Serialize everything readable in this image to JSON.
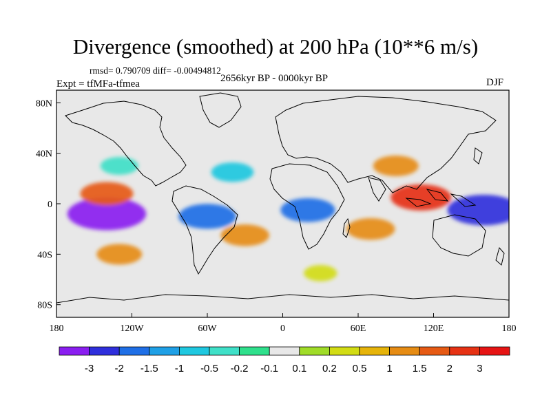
{
  "figure": {
    "title": "Divergence (smoothed) at 200 hPa (10**6 m/s)",
    "stats": "rmsd= 0.790709 diff= -0.00494812",
    "period": "2656kyr BP - 0000kyr BP",
    "experiment": "Expt = tfMFa-tfmea",
    "season": "DJF"
  },
  "axes": {
    "lon_labels": [
      "180",
      "120W",
      "60W",
      "0",
      "60E",
      "120E",
      "180"
    ],
    "lat_labels": [
      "80N",
      "40N",
      "0",
      "40S",
      "80S"
    ]
  },
  "colorbar": {
    "labels": [
      "-3",
      "-2",
      "-1.5",
      "-1",
      "-0.5",
      "-0.2",
      "-0.1",
      "0.1",
      "0.2",
      "0.5",
      "1",
      "1.5",
      "2",
      "3"
    ],
    "colors": [
      "#8a1ef0",
      "#2f2fdc",
      "#1f6fe6",
      "#1fa0e6",
      "#1fc8e0",
      "#3fe0c8",
      "#2fe08c",
      "#e8e8e8",
      "#a0dc28",
      "#d2dc14",
      "#e6b40a",
      "#e68c14",
      "#e65a14",
      "#e63214",
      "#e61414"
    ]
  },
  "chart_data": {
    "type": "heatmap",
    "title": "Divergence (smoothed) at 200 hPa (10**6 m/s)",
    "x_range_deg": [
      -180,
      180
    ],
    "y_range_deg": [
      -90,
      90
    ],
    "color_levels": [
      -3,
      -2,
      -1.5,
      -1,
      -0.5,
      -0.2,
      -0.1,
      0.1,
      0.2,
      0.5,
      1,
      1.5,
      2,
      3
    ],
    "features": [
      {
        "name": "tropical east pacific convergence",
        "lon": -140,
        "lat": -8,
        "value": -3.2
      },
      {
        "name": "pacific equatorial divergence band",
        "lon": -140,
        "lat": 8,
        "value": 1.5
      },
      {
        "name": "south pacific divergence band",
        "lon": -130,
        "lat": -40,
        "value": 1.0
      },
      {
        "name": "north pacific anomaly",
        "lon": -130,
        "lat": 30,
        "value": -0.5
      },
      {
        "name": "amazon convergence",
        "lon": -60,
        "lat": -10,
        "value": -1.8
      },
      {
        "name": "south atlantic divergence",
        "lon": -30,
        "lat": -25,
        "value": 1.2
      },
      {
        "name": "atlantic convergence band",
        "lon": -40,
        "lat": 25,
        "value": -0.8
      },
      {
        "name": "africa convergence",
        "lon": 20,
        "lat": -5,
        "value": -1.6
      },
      {
        "name": "indian ocean divergence",
        "lon": 70,
        "lat": -20,
        "value": 1.2
      },
      {
        "name": "asia divergence",
        "lon": 90,
        "lat": 30,
        "value": 1.0
      },
      {
        "name": "maritime continent divergence",
        "lon": 110,
        "lat": 5,
        "value": 2.0
      },
      {
        "name": "west pacific convergence",
        "lon": 160,
        "lat": -5,
        "value": -2.8
      },
      {
        "name": "southern ocean ring",
        "lon": 30,
        "lat": -55,
        "value": 0.2
      }
    ]
  }
}
